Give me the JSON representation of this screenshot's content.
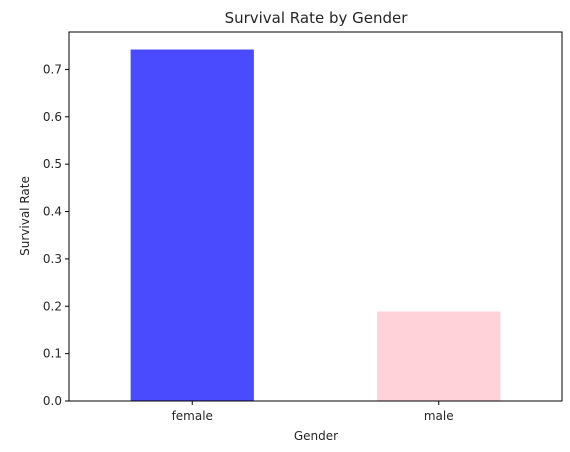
{
  "chart_data": {
    "type": "bar",
    "title": "Survival Rate by Gender",
    "xlabel": "Gender",
    "ylabel": "Survival Rate",
    "categories": [
      "female",
      "male"
    ],
    "values": [
      0.742,
      0.189
    ],
    "colors": [
      "#4a4aff",
      "#ffd1d9"
    ],
    "ylim": [
      0,
      0.779
    ],
    "yticks": [
      0.0,
      0.1,
      0.2,
      0.3,
      0.4,
      0.5,
      0.6,
      0.7
    ],
    "ytick_labels": [
      "0.0",
      "0.1",
      "0.2",
      "0.3",
      "0.4",
      "0.5",
      "0.6",
      "0.7"
    ],
    "grid": false,
    "legend": "none"
  }
}
